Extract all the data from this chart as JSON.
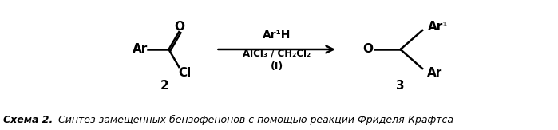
{
  "bg_color": "#ffffff",
  "caption_bold": "Схема 2.",
  "caption_italic": " Синтез замещенных бензофенонов с помощью реакции Фриделя-Крафтса",
  "compound2_label": "2",
  "compound3_label": "3",
  "arrow_label_top": "Ar¹H",
  "arrow_label_mid": "AlCl₃ / CH₂Cl₂",
  "arrow_label_bot": "(I)",
  "figsize": [
    6.99,
    1.63
  ],
  "dpi": 100
}
